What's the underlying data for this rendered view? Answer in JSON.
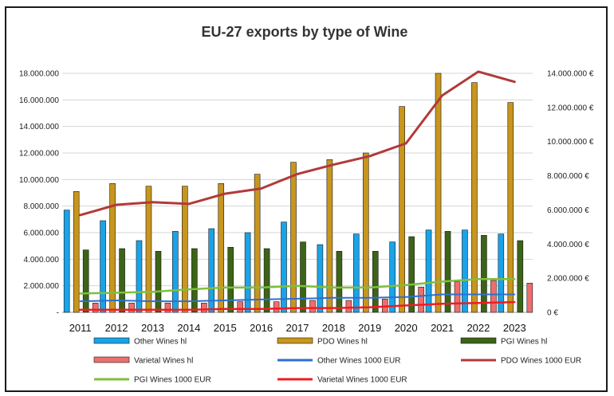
{
  "chart_data": {
    "type": "bar",
    "title": "EU-27 exports by type of Wine",
    "categories": [
      "2011",
      "2012",
      "2013",
      "2014",
      "2015",
      "2016",
      "2017",
      "2018",
      "2019",
      "2020",
      "2021",
      "2022",
      "2023"
    ],
    "y_left": {
      "ylim": [
        0,
        18000000
      ],
      "ticks": [
        0,
        2000000,
        4000000,
        6000000,
        8000000,
        10000000,
        12000000,
        14000000,
        16000000,
        18000000
      ],
      "tick_labels": [
        "-",
        "2.000.000",
        "4.000.000",
        "6.000.000",
        "8.000.000",
        "10.000.000",
        "12.000.000",
        "14.000.000",
        "16.000.000",
        "18.000.000"
      ]
    },
    "y_right": {
      "ylim": [
        0,
        14000000
      ],
      "ticks": [
        0,
        2000000,
        4000000,
        6000000,
        8000000,
        10000000,
        12000000,
        14000000
      ],
      "tick_labels": [
        "0 €",
        "2.000.000 €",
        "4.000.000 €",
        "6.000.000 €",
        "8.000.000 €",
        "10.000.000 €",
        "12.000.000 €",
        "14.000.000 €"
      ]
    },
    "grid": true,
    "legend_position": "bottom",
    "bar_series": [
      {
        "name": "Other Wines hl",
        "color": "#1aa3e8",
        "values": [
          7700000,
          6900000,
          5400000,
          6100000,
          6300000,
          6000000,
          6800000,
          5100000,
          5900000,
          5300000,
          6200000,
          6200000,
          5900000
        ]
      },
      {
        "name": "PDO Wines hl",
        "color": "#c8961e",
        "values": [
          9100000,
          9700000,
          9500000,
          9500000,
          9700000,
          10400000,
          11300000,
          11500000,
          12000000,
          15500000,
          18000000,
          17300000,
          15800000
        ]
      },
      {
        "name": "PGI Wines hl",
        "color": "#3c6417",
        "values": [
          4700000,
          4800000,
          4600000,
          4800000,
          4900000,
          4800000,
          5300000,
          4600000,
          4600000,
          5700000,
          6100000,
          5800000,
          5400000
        ]
      },
      {
        "name": "Varietal Wines hl",
        "color": "#ee6e6e",
        "values": [
          700000,
          700000,
          700000,
          700000,
          800000,
          800000,
          900000,
          900000,
          1000000,
          1900000,
          2300000,
          2400000,
          2200000
        ]
      }
    ],
    "line_series": [
      {
        "name": "Other Wines 1000 EUR",
        "color": "#2e6fd0",
        "values": [
          650000,
          700000,
          650000,
          650000,
          700000,
          750000,
          800000,
          850000,
          850000,
          900000,
          1050000,
          1050000,
          1050000
        ]
      },
      {
        "name": "PDO Wines 1000 EUR",
        "color": "#b23a3a",
        "values": [
          5700000,
          6300000,
          6450000,
          6350000,
          6950000,
          7250000,
          8100000,
          8650000,
          9150000,
          9900000,
          12700000,
          14100000,
          13500000
        ]
      },
      {
        "name": "PGI Wines 1000 EUR",
        "color": "#7cc03c",
        "values": [
          1100000,
          1150000,
          1200000,
          1350000,
          1450000,
          1450000,
          1550000,
          1450000,
          1450000,
          1600000,
          1800000,
          1950000,
          1950000
        ]
      },
      {
        "name": "Varietal Wines 1000 EUR",
        "color": "#ee1c24",
        "values": [
          150000,
          150000,
          150000,
          150000,
          200000,
          200000,
          250000,
          250000,
          300000,
          400000,
          500000,
          550000,
          600000
        ]
      }
    ],
    "legend": [
      {
        "name": "Other Wines hl",
        "kind": "bar",
        "color": "#1aa3e8"
      },
      {
        "name": "PDO Wines hl",
        "kind": "bar",
        "color": "#c8961e"
      },
      {
        "name": "PGI Wines hl",
        "kind": "bar",
        "color": "#3c6417"
      },
      {
        "name": "Varietal Wines hl",
        "kind": "bar",
        "color": "#ee6e6e"
      },
      {
        "name": "Other Wines 1000 EUR",
        "kind": "line",
        "color": "#2e6fd0"
      },
      {
        "name": "PDO Wines 1000 EUR",
        "kind": "line",
        "color": "#b23a3a"
      },
      {
        "name": "PGI Wines 1000 EUR",
        "kind": "line",
        "color": "#7cc03c"
      },
      {
        "name": "Varietal Wines 1000 EUR",
        "kind": "line",
        "color": "#ee1c24"
      }
    ]
  }
}
